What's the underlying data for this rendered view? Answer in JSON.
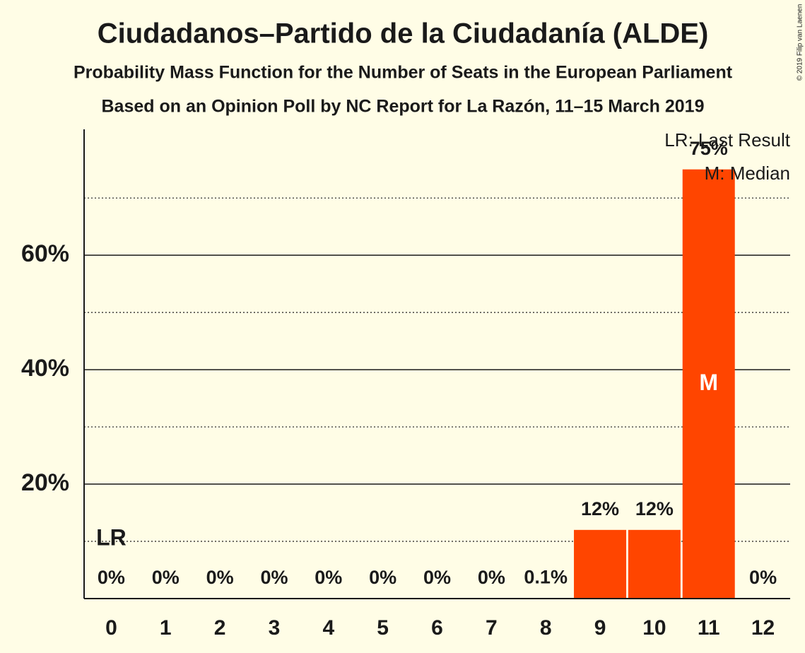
{
  "chart_data": {
    "type": "bar",
    "title": "Ciudadanos–Partido de la Ciudadanía (ALDE)",
    "subtitle": "Probability Mass Function for the Number of Seats in the European Parliament",
    "subtitle2": "Based on an Opinion Poll by NC Report for La Razón, 11–15 March 2019",
    "credit": "© 2019 Filip van Laenen",
    "categories": [
      "0",
      "1",
      "2",
      "3",
      "4",
      "5",
      "6",
      "7",
      "8",
      "9",
      "10",
      "11",
      "12"
    ],
    "values": [
      0,
      0,
      0,
      0,
      0,
      0,
      0,
      0,
      0.1,
      12,
      12,
      75,
      0
    ],
    "value_labels": [
      "0%",
      "0%",
      "0%",
      "0%",
      "0%",
      "0%",
      "0%",
      "0%",
      "0.1%",
      "12%",
      "12%",
      "75%",
      "0%"
    ],
    "color": "#ff4500",
    "ylim": [
      0,
      82
    ],
    "yticks": [
      {
        "value": 20,
        "label": "20%"
      },
      {
        "value": 40,
        "label": "40%"
      },
      {
        "value": 60,
        "label": "60%"
      }
    ],
    "minor_yticks": [
      10,
      30,
      50,
      70
    ],
    "grid": true,
    "annotations": [
      {
        "text": "LR",
        "category": "0"
      },
      {
        "text": "M",
        "category": "11"
      }
    ],
    "legend": [
      "LR: Last Result",
      "M: Median"
    ]
  }
}
